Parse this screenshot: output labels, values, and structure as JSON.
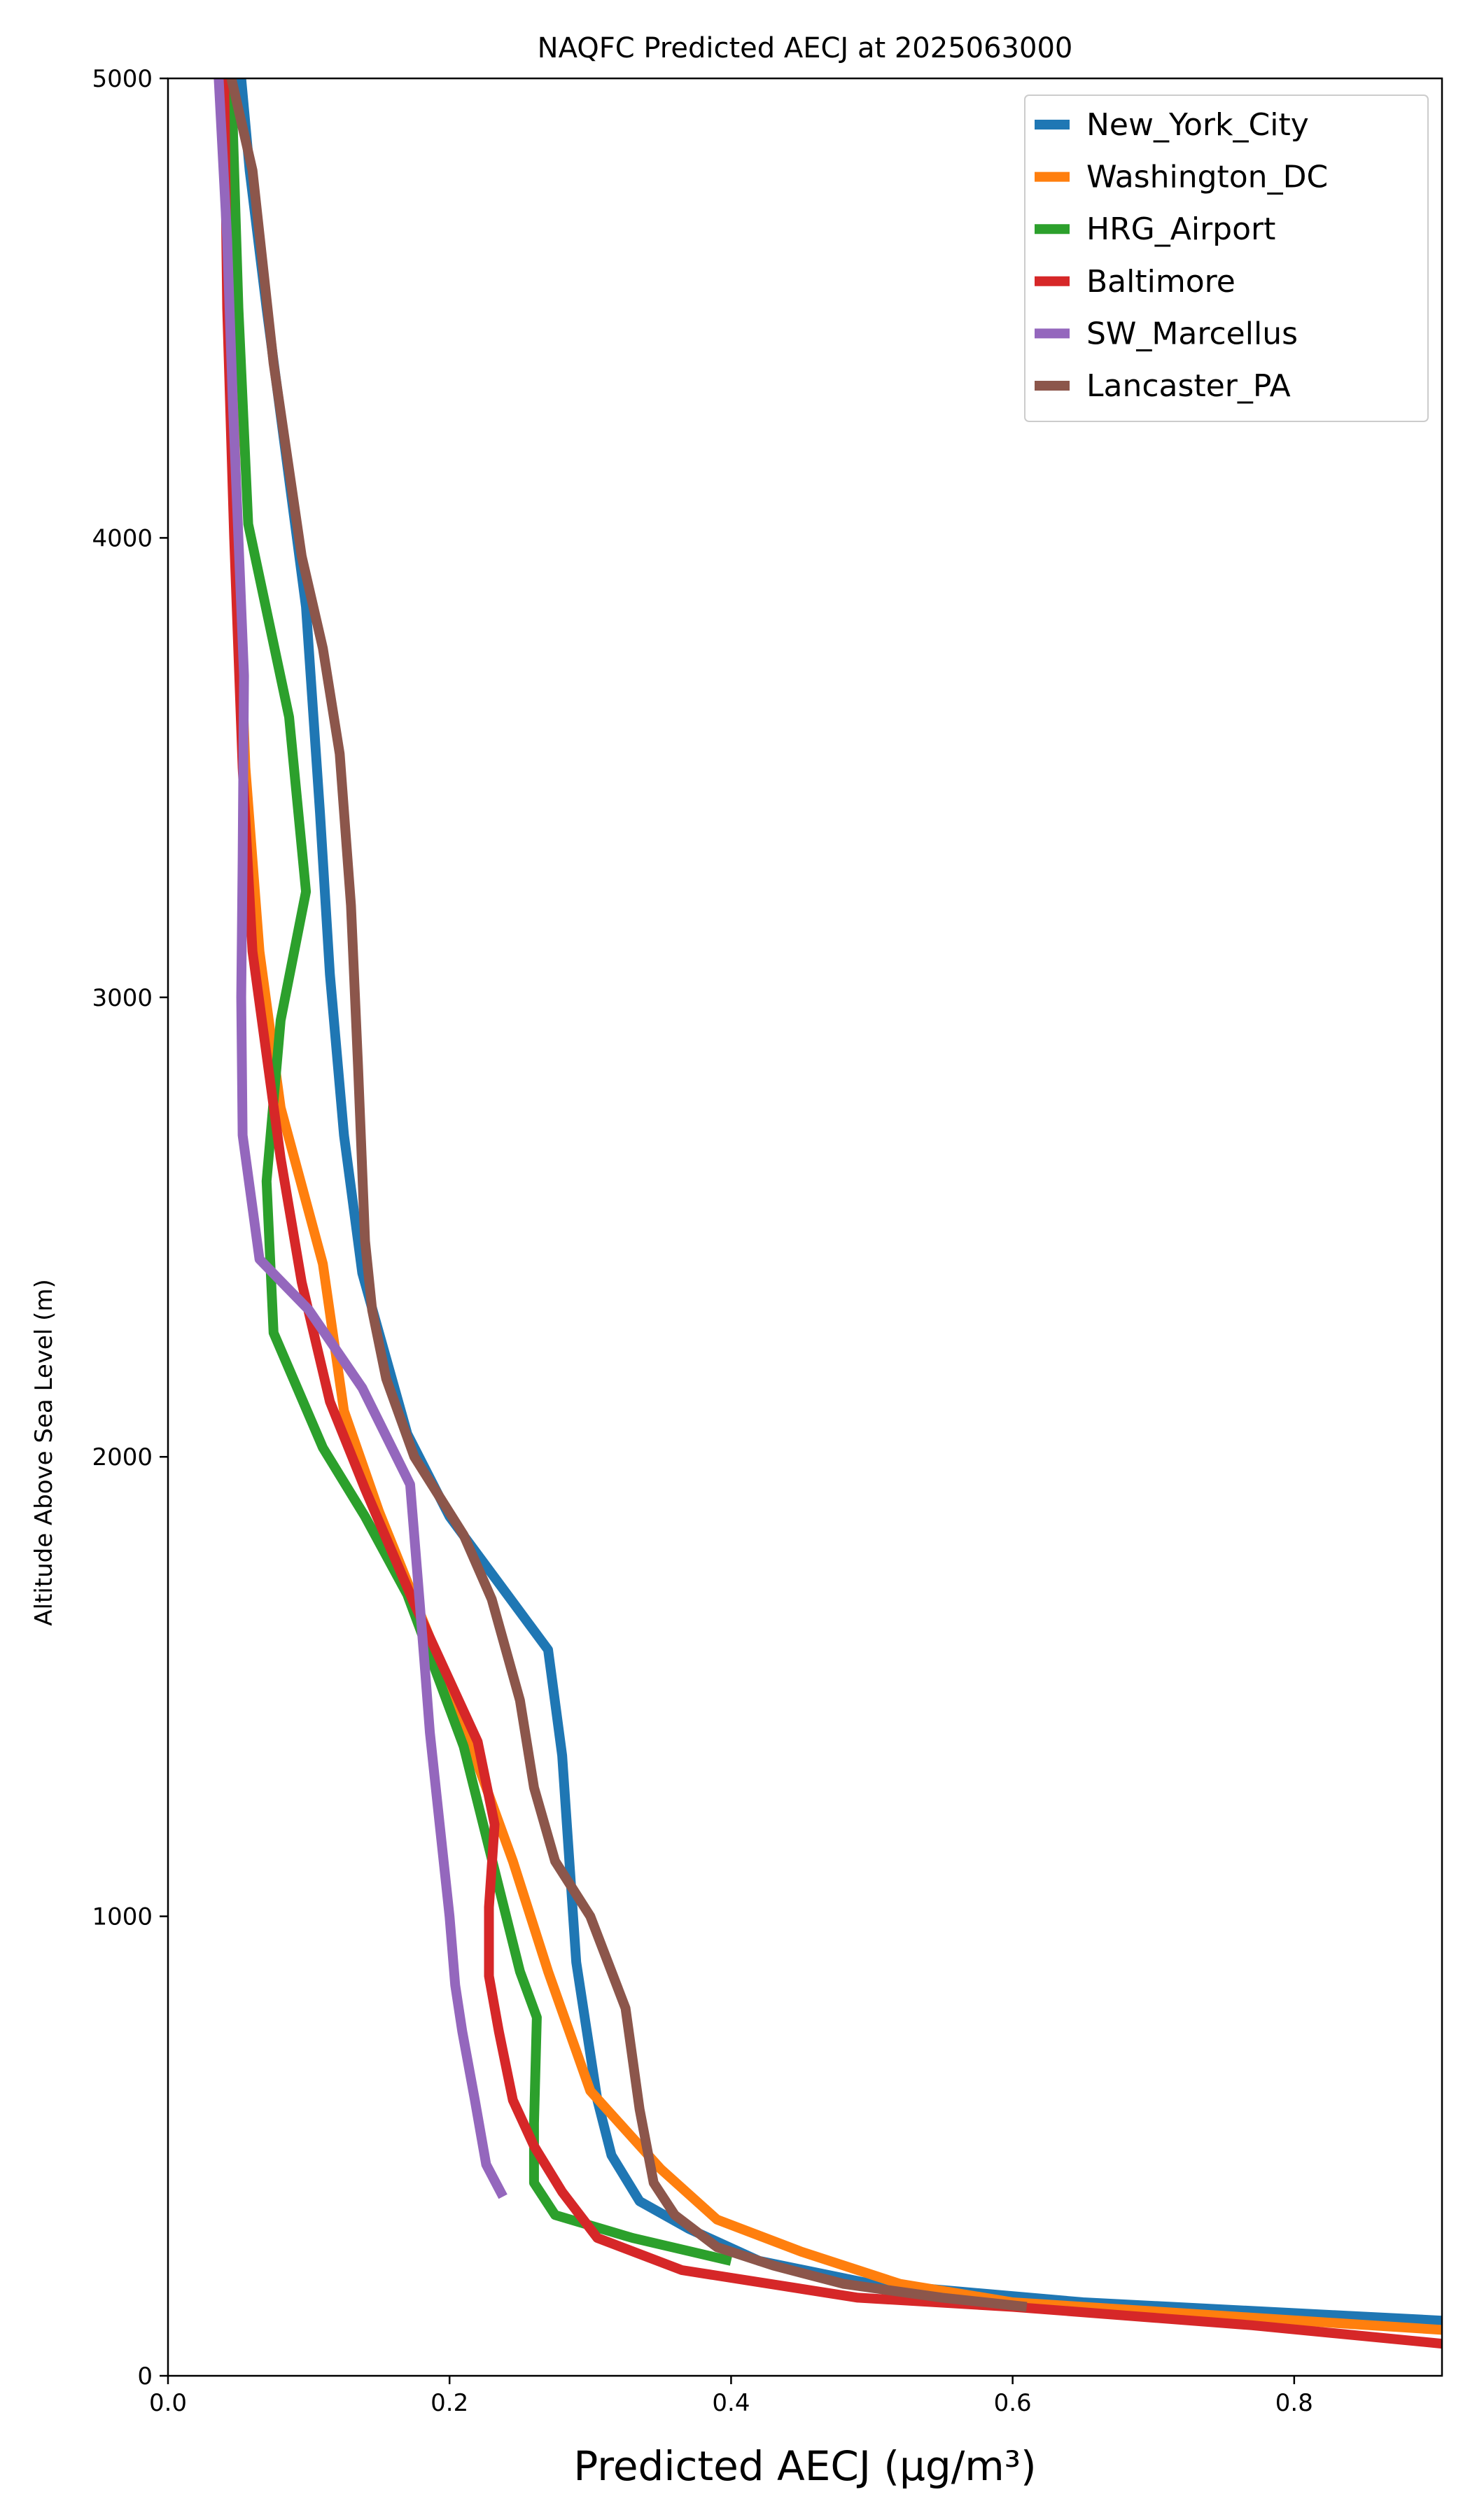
{
  "chart_data": {
    "type": "line",
    "title": "NAQFC Predicted AECJ at 2025063000",
    "xlabel": "Predicted AECJ (μg/m³)",
    "ylabel": "Altitude Above Sea Level (m)",
    "xlim": [
      0.0,
      0.905
    ],
    "ylim": [
      0,
      5000
    ],
    "x_ticks": [
      0.0,
      0.2,
      0.4,
      0.6,
      0.8
    ],
    "y_ticks": [
      0,
      1000,
      2000,
      3000,
      4000,
      5000
    ],
    "x_tick_labels": [
      "0.0",
      "0.2",
      "0.4",
      "0.6",
      "0.8"
    ],
    "y_tick_labels": [
      "0",
      "1000",
      "2000",
      "3000",
      "4000",
      "5000"
    ],
    "grid": false,
    "legend_position": "top-right",
    "series": [
      {
        "name": "New_York_City",
        "color": "#1f77b4",
        "points": [
          [
            0.905,
            120
          ],
          [
            0.65,
            160
          ],
          [
            0.5,
            200
          ],
          [
            0.42,
            250
          ],
          [
            0.37,
            320
          ],
          [
            0.335,
            380
          ],
          [
            0.315,
            480
          ],
          [
            0.305,
            600
          ],
          [
            0.29,
            900
          ],
          [
            0.28,
            1350
          ],
          [
            0.27,
            1580
          ],
          [
            0.2,
            1870
          ],
          [
            0.17,
            2050
          ],
          [
            0.138,
            2400
          ],
          [
            0.125,
            2700
          ],
          [
            0.115,
            3050
          ],
          [
            0.108,
            3400
          ],
          [
            0.098,
            3850
          ],
          [
            0.07,
            4500
          ],
          [
            0.058,
            4800
          ],
          [
            0.052,
            5000
          ]
        ]
      },
      {
        "name": "Washington_DC",
        "color": "#ff7f0e",
        "points": [
          [
            0.905,
            100
          ],
          [
            0.6,
            160
          ],
          [
            0.52,
            200
          ],
          [
            0.45,
            270
          ],
          [
            0.39,
            340
          ],
          [
            0.35,
            450
          ],
          [
            0.3,
            620
          ],
          [
            0.27,
            880
          ],
          [
            0.245,
            1120
          ],
          [
            0.2,
            1500
          ],
          [
            0.15,
            1880
          ],
          [
            0.125,
            2100
          ],
          [
            0.11,
            2420
          ],
          [
            0.08,
            2760
          ],
          [
            0.065,
            3100
          ],
          [
            0.055,
            3500
          ],
          [
            0.05,
            3900
          ],
          [
            0.045,
            4500
          ],
          [
            0.042,
            5000
          ]
        ]
      },
      {
        "name": "HRG_Airport",
        "color": "#2ca02c",
        "points": [
          [
            0.4,
            250
          ],
          [
            0.33,
            300
          ],
          [
            0.275,
            350
          ],
          [
            0.26,
            420
          ],
          [
            0.26,
            550
          ],
          [
            0.262,
            780
          ],
          [
            0.25,
            880
          ],
          [
            0.21,
            1370
          ],
          [
            0.17,
            1700
          ],
          [
            0.14,
            1870
          ],
          [
            0.11,
            2020
          ],
          [
            0.075,
            2270
          ],
          [
            0.07,
            2600
          ],
          [
            0.08,
            2950
          ],
          [
            0.098,
            3230
          ],
          [
            0.086,
            3610
          ],
          [
            0.057,
            4030
          ],
          [
            0.05,
            4500
          ],
          [
            0.045,
            5000
          ]
        ]
      },
      {
        "name": "Baltimore",
        "color": "#d62728",
        "points": [
          [
            0.905,
            70
          ],
          [
            0.77,
            110
          ],
          [
            0.6,
            150
          ],
          [
            0.49,
            170
          ],
          [
            0.365,
            230
          ],
          [
            0.305,
            300
          ],
          [
            0.28,
            400
          ],
          [
            0.26,
            500
          ],
          [
            0.245,
            600
          ],
          [
            0.235,
            750
          ],
          [
            0.228,
            870
          ],
          [
            0.228,
            1020
          ],
          [
            0.232,
            1200
          ],
          [
            0.22,
            1380
          ],
          [
            0.175,
            1680
          ],
          [
            0.14,
            1930
          ],
          [
            0.115,
            2120
          ],
          [
            0.095,
            2380
          ],
          [
            0.08,
            2650
          ],
          [
            0.06,
            3100
          ],
          [
            0.053,
            3500
          ],
          [
            0.047,
            4000
          ],
          [
            0.042,
            4500
          ],
          [
            0.04,
            5000
          ]
        ]
      },
      {
        "name": "SW_Marcellus",
        "color": "#9467bd",
        "points": [
          [
            0.238,
            390
          ],
          [
            0.226,
            460
          ],
          [
            0.218,
            600
          ],
          [
            0.209,
            750
          ],
          [
            0.204,
            850
          ],
          [
            0.2,
            1000
          ],
          [
            0.193,
            1200
          ],
          [
            0.186,
            1400
          ],
          [
            0.182,
            1560
          ],
          [
            0.177,
            1750
          ],
          [
            0.172,
            1940
          ],
          [
            0.138,
            2150
          ],
          [
            0.1,
            2320
          ],
          [
            0.065,
            2430
          ],
          [
            0.053,
            2700
          ],
          [
            0.052,
            3000
          ],
          [
            0.053,
            3300
          ],
          [
            0.054,
            3700
          ],
          [
            0.05,
            4000
          ],
          [
            0.046,
            4300
          ],
          [
            0.042,
            4650
          ],
          [
            0.036,
            5000
          ]
        ]
      },
      {
        "name": "Lancaster_PA",
        "color": "#8c564b",
        "points": [
          [
            0.61,
            150
          ],
          [
            0.55,
            170
          ],
          [
            0.48,
            200
          ],
          [
            0.43,
            240
          ],
          [
            0.39,
            280
          ],
          [
            0.36,
            350
          ],
          [
            0.345,
            420
          ],
          [
            0.335,
            580
          ],
          [
            0.325,
            800
          ],
          [
            0.3,
            1000
          ],
          [
            0.275,
            1120
          ],
          [
            0.26,
            1280
          ],
          [
            0.25,
            1470
          ],
          [
            0.23,
            1690
          ],
          [
            0.21,
            1830
          ],
          [
            0.175,
            2000
          ],
          [
            0.155,
            2170
          ],
          [
            0.145,
            2320
          ],
          [
            0.14,
            2470
          ],
          [
            0.135,
            2850
          ],
          [
            0.13,
            3200
          ],
          [
            0.122,
            3530
          ],
          [
            0.11,
            3760
          ],
          [
            0.095,
            3960
          ],
          [
            0.075,
            4380
          ],
          [
            0.06,
            4800
          ],
          [
            0.045,
            5000
          ]
        ]
      }
    ]
  }
}
